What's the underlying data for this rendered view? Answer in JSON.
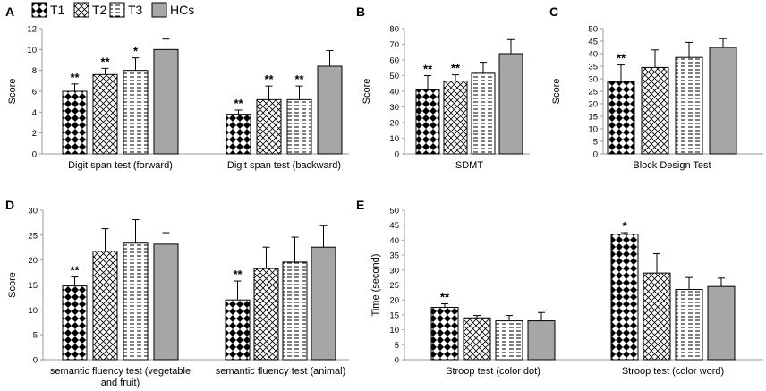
{
  "legend": [
    {
      "key": "T1",
      "label": "T1",
      "pattern": "diamond"
    },
    {
      "key": "T2",
      "label": "T2",
      "pattern": "cross"
    },
    {
      "key": "T3",
      "label": "T3",
      "pattern": "dash"
    },
    {
      "key": "HCs",
      "label": "HCs",
      "pattern": "solid"
    }
  ],
  "colors": {
    "bar_fill_solid": "#a6a6a6",
    "ink": "#000000",
    "axis": "#999999"
  },
  "chart_data": [
    {
      "id": "A",
      "letter": "A",
      "type": "bar",
      "ylabel": "Score",
      "ylim": [
        0,
        12
      ],
      "yticks": [
        0,
        2,
        4,
        6,
        8,
        10,
        12
      ],
      "categories": [
        "Digit span test (forward)",
        "Digit span test (backward)"
      ],
      "series": [
        {
          "name": "T1",
          "values": [
            6.0,
            3.8
          ],
          "errors": [
            0.7,
            0.4
          ],
          "sig": [
            "**",
            "**"
          ]
        },
        {
          "name": "T2",
          "values": [
            7.6,
            5.2
          ],
          "errors": [
            0.6,
            1.3
          ],
          "sig": [
            "**",
            "**"
          ]
        },
        {
          "name": "T3",
          "values": [
            8.0,
            5.2
          ],
          "errors": [
            1.2,
            1.3
          ],
          "sig": [
            "*",
            "**"
          ]
        },
        {
          "name": "HCs",
          "values": [
            10.0,
            8.4
          ],
          "errors": [
            1.0,
            1.5
          ],
          "sig": [
            "",
            ""
          ]
        }
      ]
    },
    {
      "id": "B",
      "letter": "B",
      "type": "bar",
      "ylabel": "Score",
      "ylim": [
        0,
        80
      ],
      "yticks": [
        0,
        10,
        20,
        30,
        40,
        50,
        60,
        70,
        80
      ],
      "categories": [
        "SDMT"
      ],
      "series": [
        {
          "name": "T1",
          "values": [
            41
          ],
          "errors": [
            9
          ],
          "sig": [
            "**"
          ]
        },
        {
          "name": "T2",
          "values": [
            46.5
          ],
          "errors": [
            4
          ],
          "sig": [
            "**"
          ]
        },
        {
          "name": "T3",
          "values": [
            51.5
          ],
          "errors": [
            7
          ],
          "sig": [
            ""
          ]
        },
        {
          "name": "HCs",
          "values": [
            64
          ],
          "errors": [
            9
          ],
          "sig": [
            ""
          ]
        }
      ]
    },
    {
      "id": "C",
      "letter": "C",
      "type": "bar",
      "ylabel": "Score",
      "ylim": [
        0,
        50
      ],
      "yticks": [
        0,
        5,
        10,
        15,
        20,
        25,
        30,
        35,
        40,
        45,
        50
      ],
      "categories": [
        "Block Design Test"
      ],
      "series": [
        {
          "name": "T1",
          "values": [
            29
          ],
          "errors": [
            6.5
          ],
          "sig": [
            "**"
          ]
        },
        {
          "name": "T2",
          "values": [
            34.5
          ],
          "errors": [
            7
          ],
          "sig": [
            ""
          ]
        },
        {
          "name": "T3",
          "values": [
            38.5
          ],
          "errors": [
            6
          ],
          "sig": [
            ""
          ]
        },
        {
          "name": "HCs",
          "values": [
            42.5
          ],
          "errors": [
            3.5
          ],
          "sig": [
            ""
          ]
        }
      ]
    },
    {
      "id": "D",
      "letter": "D",
      "type": "bar",
      "ylabel": "Score",
      "ylim": [
        0,
        30
      ],
      "yticks": [
        0,
        5,
        10,
        15,
        20,
        25,
        30
      ],
      "categories": [
        "semantic fluency test (vegetable and fruit)",
        "semantic fluency test (animal)"
      ],
      "category_lines": [
        [
          "semantic fluency test (vegetable",
          "and fruit)"
        ],
        [
          "semantic fluency test (animal)"
        ]
      ],
      "series": [
        {
          "name": "T1",
          "values": [
            14.8,
            12.0
          ],
          "errors": [
            1.8,
            3.8
          ],
          "sig": [
            "**",
            "**"
          ]
        },
        {
          "name": "T2",
          "values": [
            21.8,
            18.3
          ],
          "errors": [
            4.5,
            4.3
          ],
          "sig": [
            "",
            ""
          ]
        },
        {
          "name": "T3",
          "values": [
            23.4,
            19.6
          ],
          "errors": [
            4.7,
            5.0
          ],
          "sig": [
            "",
            ""
          ]
        },
        {
          "name": "HCs",
          "values": [
            23.2,
            22.6
          ],
          "errors": [
            2.3,
            4.3
          ],
          "sig": [
            "",
            ""
          ]
        }
      ]
    },
    {
      "id": "E",
      "letter": "E",
      "type": "bar",
      "ylabel": "Time (second)",
      "ylim": [
        0,
        50
      ],
      "yticks": [
        0,
        5,
        10,
        15,
        20,
        25,
        30,
        35,
        40,
        45,
        50
      ],
      "categories": [
        "Stroop test (color dot)",
        "Stroop test (color word)"
      ],
      "series": [
        {
          "name": "T1",
          "values": [
            17.5,
            42.0
          ],
          "errors": [
            1.2,
            0.5
          ],
          "sig": [
            "**",
            "*"
          ]
        },
        {
          "name": "T2",
          "values": [
            14.0,
            29.0
          ],
          "errors": [
            0.8,
            6.5
          ],
          "sig": [
            "",
            ""
          ]
        },
        {
          "name": "T3",
          "values": [
            13.0,
            23.5
          ],
          "errors": [
            1.8,
            4.0
          ],
          "sig": [
            "",
            ""
          ]
        },
        {
          "name": "HCs",
          "values": [
            13.0,
            24.5
          ],
          "errors": [
            2.8,
            2.8
          ],
          "sig": [
            "",
            ""
          ]
        }
      ]
    }
  ]
}
